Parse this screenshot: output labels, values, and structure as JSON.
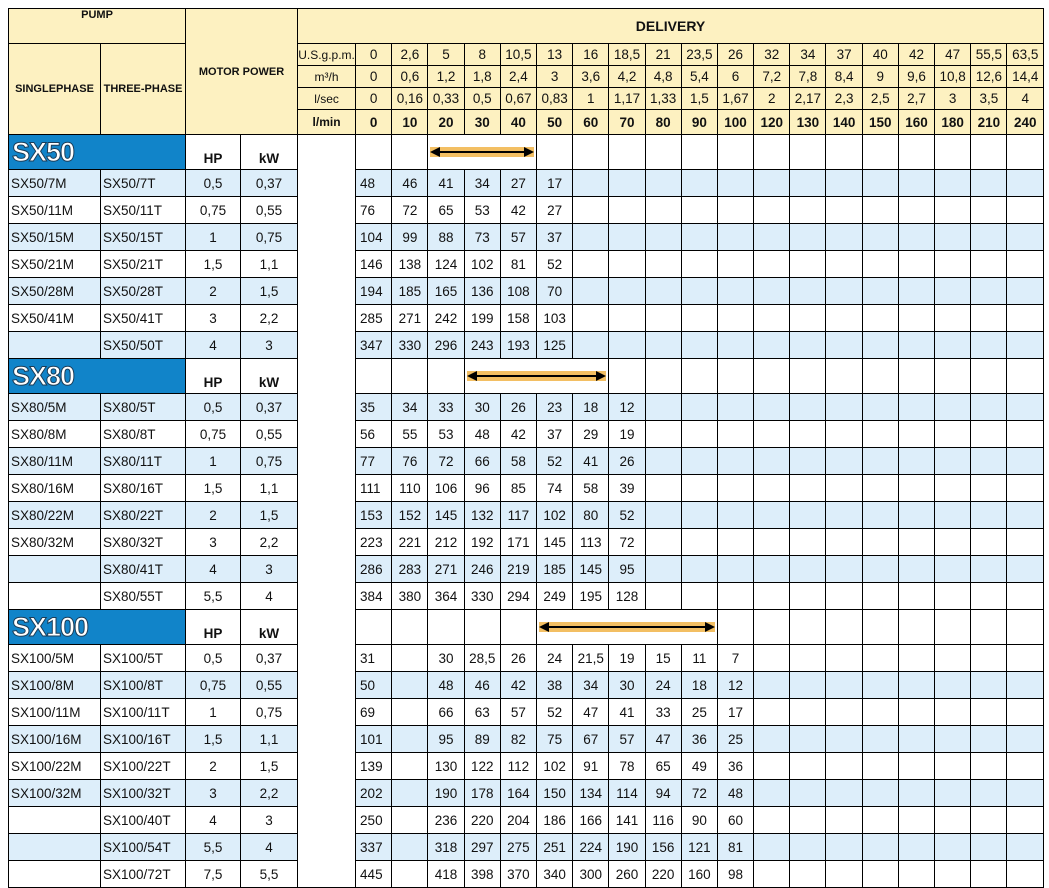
{
  "header": {
    "pump": "PUMP",
    "singlephase": "SINGLEPHASE",
    "threephase": "THREE-PHASE",
    "motor_power": "MOTOR POWER",
    "delivery": "DELIVERY",
    "units": [
      {
        "label": "U.S.g.p.m.",
        "values": [
          "0",
          "2,6",
          "5",
          "8",
          "10,5",
          "13",
          "16",
          "18,5",
          "21",
          "23,5",
          "26",
          "32",
          "34",
          "37",
          "40",
          "42",
          "47",
          "55,5",
          "63,5"
        ]
      },
      {
        "label": "m³/h",
        "values": [
          "0",
          "0,6",
          "1,2",
          "1,8",
          "2,4",
          "3",
          "3,6",
          "4,2",
          "4,8",
          "5,4",
          "6",
          "7,2",
          "7,8",
          "8,4",
          "9",
          "9,6",
          "10,8",
          "12,6",
          "14,4"
        ]
      },
      {
        "label": "l/sec",
        "values": [
          "0",
          "0,16",
          "0,33",
          "0,5",
          "0,67",
          "0,83",
          "1",
          "1,17",
          "1,33",
          "1,5",
          "1,67",
          "2",
          "2,17",
          "2,3",
          "2,5",
          "2,7",
          "3",
          "3,5",
          "4"
        ]
      },
      {
        "label": "l/min",
        "values": [
          "0",
          "10",
          "20",
          "30",
          "40",
          "50",
          "60",
          "70",
          "80",
          "90",
          "100",
          "120",
          "130",
          "140",
          "150",
          "160",
          "180",
          "210",
          "240"
        ],
        "bold": true
      }
    ]
  },
  "colors": {
    "header_bg": "#fdf1c1",
    "stripe": "#ddeefa",
    "section": "#1184c9",
    "arrow": "#f3bf63"
  },
  "sections": [
    {
      "name": "SX50",
      "hp_label": "HP",
      "kw_label": "kW",
      "arrow_from": 2,
      "arrow_to": 4,
      "rows": [
        {
          "single": "SX50/7M",
          "three": "SX50/7T",
          "hp": "0,5",
          "kw": "0,37",
          "highlight": true,
          "values": [
            "48",
            "46",
            "41",
            "34",
            "27",
            "17"
          ]
        },
        {
          "single": "SX50/11M",
          "three": "SX50/11T",
          "hp": "0,75",
          "kw": "0,55",
          "highlight": false,
          "values": [
            "76",
            "72",
            "65",
            "53",
            "42",
            "27"
          ]
        },
        {
          "single": "SX50/15M",
          "three": "SX50/15T",
          "hp": "1",
          "kw": "0,75",
          "highlight": true,
          "values": [
            "104",
            "99",
            "88",
            "73",
            "57",
            "37"
          ]
        },
        {
          "single": "SX50/21M",
          "three": "SX50/21T",
          "hp": "1,5",
          "kw": "1,1",
          "highlight": false,
          "values": [
            "146",
            "138",
            "124",
            "102",
            "81",
            "52"
          ]
        },
        {
          "single": "SX50/28M",
          "three": "SX50/28T",
          "hp": "2",
          "kw": "1,5",
          "highlight": true,
          "values": [
            "194",
            "185",
            "165",
            "136",
            "108",
            "70"
          ]
        },
        {
          "single": "SX50/41M",
          "three": "SX50/41T",
          "hp": "3",
          "kw": "2,2",
          "highlight": false,
          "values": [
            "285",
            "271",
            "242",
            "199",
            "158",
            "103"
          ]
        },
        {
          "single": "",
          "three": "SX50/50T",
          "hp": "4",
          "kw": "3",
          "highlight": true,
          "values": [
            "347",
            "330",
            "296",
            "243",
            "193",
            "125"
          ]
        }
      ]
    },
    {
      "name": "SX80",
      "hp_label": "HP",
      "kw_label": "kW",
      "arrow_from": 3,
      "arrow_to": 6,
      "rows": [
        {
          "single": "SX80/5M",
          "three": "SX80/5T",
          "hp": "0,5",
          "kw": "0,37",
          "highlight": true,
          "values": [
            "35",
            "34",
            "33",
            "30",
            "26",
            "23",
            "18",
            "12"
          ]
        },
        {
          "single": "SX80/8M",
          "three": "SX80/8T",
          "hp": "0,75",
          "kw": "0,55",
          "highlight": false,
          "values": [
            "56",
            "55",
            "53",
            "48",
            "42",
            "37",
            "29",
            "19"
          ]
        },
        {
          "single": "SX80/11M",
          "three": "SX80/11T",
          "hp": "1",
          "kw": "0,75",
          "highlight": true,
          "values": [
            "77",
            "76",
            "72",
            "66",
            "58",
            "52",
            "41",
            "26"
          ]
        },
        {
          "single": "SX80/16M",
          "three": "SX80/16T",
          "hp": "1,5",
          "kw": "1,1",
          "highlight": false,
          "values": [
            "111",
            "110",
            "106",
            "96",
            "85",
            "74",
            "58",
            "39"
          ]
        },
        {
          "single": "SX80/22M",
          "three": "SX80/22T",
          "hp": "2",
          "kw": "1,5",
          "highlight": true,
          "values": [
            "153",
            "152",
            "145",
            "132",
            "117",
            "102",
            "80",
            "52"
          ]
        },
        {
          "single": "SX80/32M",
          "three": "SX80/32T",
          "hp": "3",
          "kw": "2,2",
          "highlight": false,
          "values": [
            "223",
            "221",
            "212",
            "192",
            "171",
            "145",
            "113",
            "72"
          ]
        },
        {
          "single": "",
          "three": "SX80/41T",
          "hp": "4",
          "kw": "3",
          "highlight": true,
          "values": [
            "286",
            "283",
            "271",
            "246",
            "219",
            "185",
            "145",
            "95"
          ]
        },
        {
          "single": "",
          "three": "SX80/55T",
          "hp": "5,5",
          "kw": "4",
          "highlight": false,
          "values": [
            "384",
            "380",
            "364",
            "330",
            "294",
            "249",
            "195",
            "128"
          ]
        }
      ]
    },
    {
      "name": "SX100",
      "hp_label": "HP",
      "kw_label": "kW",
      "arrow_from": 5,
      "arrow_to": 9,
      "rows": [
        {
          "single": "SX100/5M",
          "three": "SX100/5T",
          "hp": "0,5",
          "kw": "0,37",
          "highlight": false,
          "values": [
            "31",
            "",
            "30",
            "28,5",
            "26",
            "24",
            "21,5",
            "19",
            "15",
            "11",
            "7"
          ]
        },
        {
          "single": "SX100/8M",
          "three": "SX100/8T",
          "hp": "0,75",
          "kw": "0,55",
          "highlight": true,
          "values": [
            "50",
            "",
            "48",
            "46",
            "42",
            "38",
            "34",
            "30",
            "24",
            "18",
            "12"
          ]
        },
        {
          "single": "SX100/11M",
          "three": "SX100/11T",
          "hp": "1",
          "kw": "0,75",
          "highlight": false,
          "values": [
            "69",
            "",
            "66",
            "63",
            "57",
            "52",
            "47",
            "41",
            "33",
            "25",
            "17"
          ]
        },
        {
          "single": "SX100/16M",
          "three": "SX100/16T",
          "hp": "1,5",
          "kw": "1,1",
          "highlight": true,
          "values": [
            "101",
            "",
            "95",
            "89",
            "82",
            "75",
            "67",
            "57",
            "47",
            "36",
            "25"
          ]
        },
        {
          "single": "SX100/22M",
          "three": "SX100/22T",
          "hp": "2",
          "kw": "1,5",
          "highlight": false,
          "values": [
            "139",
            "",
            "130",
            "122",
            "112",
            "102",
            "91",
            "78",
            "65",
            "49",
            "36"
          ]
        },
        {
          "single": "SX100/32M",
          "three": "SX100/32T",
          "hp": "3",
          "kw": "2,2",
          "highlight": true,
          "values": [
            "202",
            "",
            "190",
            "178",
            "164",
            "150",
            "134",
            "114",
            "94",
            "72",
            "48"
          ]
        },
        {
          "single": "",
          "three": "SX100/40T",
          "hp": "4",
          "kw": "3",
          "highlight": false,
          "values": [
            "250",
            "",
            "236",
            "220",
            "204",
            "186",
            "166",
            "141",
            "116",
            "90",
            "60"
          ]
        },
        {
          "single": "",
          "three": "SX100/54T",
          "hp": "5,5",
          "kw": "4",
          "highlight": true,
          "values": [
            "337",
            "",
            "318",
            "297",
            "275",
            "251",
            "224",
            "190",
            "156",
            "121",
            "81"
          ]
        },
        {
          "single": "",
          "three": "SX100/72T",
          "hp": "7,5",
          "kw": "5,5",
          "highlight": false,
          "values": [
            "445",
            "",
            "418",
            "398",
            "370",
            "340",
            "300",
            "260",
            "220",
            "160",
            "98"
          ]
        }
      ]
    }
  ]
}
